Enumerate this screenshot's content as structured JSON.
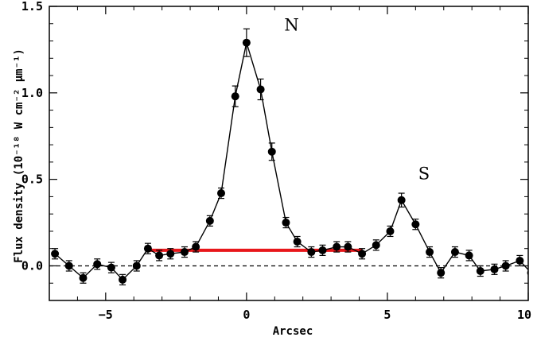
{
  "chart_data": {
    "type": "scatter",
    "title": "",
    "xlabel": "Arcsec",
    "ylabel": "Flux density (10⁻¹⁸ W cm⁻² μm⁻¹)",
    "xlim": [
      -7,
      10
    ],
    "ylim": [
      -0.2,
      1.5
    ],
    "xticks": [
      -5,
      0,
      5,
      10
    ],
    "xtick_labels": [
      "−5",
      "0",
      "5",
      "10"
    ],
    "yticks": [
      0.0,
      0.5,
      1.0,
      1.5
    ],
    "ytick_labels": [
      "0.0",
      "0.5",
      "1.0",
      "1.5"
    ],
    "grid": false,
    "legend": "none",
    "series": [
      {
        "x": [
          -6.8,
          -6.3,
          -5.8,
          -5.3,
          -4.8,
          -4.4,
          -3.9,
          -3.5,
          -3.1,
          -2.7,
          -2.2,
          -1.8,
          -1.3,
          -0.9,
          -0.4,
          0.0,
          0.5,
          0.9,
          1.4,
          1.8,
          2.3,
          2.7,
          3.2,
          3.6,
          4.1,
          4.6,
          5.1,
          5.5,
          6.0,
          6.5,
          6.9,
          7.4,
          7.9,
          8.3,
          8.8,
          9.2,
          9.7,
          10.1
        ],
        "y": [
          0.07,
          0.0,
          -0.07,
          0.01,
          -0.01,
          -0.08,
          0.0,
          0.1,
          0.06,
          0.07,
          0.08,
          0.11,
          0.26,
          0.42,
          0.98,
          1.29,
          1.02,
          0.66,
          0.25,
          0.14,
          0.08,
          0.09,
          0.11,
          0.11,
          0.07,
          0.12,
          0.2,
          0.38,
          0.24,
          0.08,
          -0.04,
          0.08,
          0.06,
          -0.03,
          -0.02,
          0.0,
          0.03,
          -0.04
        ],
        "yerr": [
          0.03,
          0.03,
          0.03,
          0.03,
          0.03,
          0.03,
          0.03,
          0.03,
          0.03,
          0.03,
          0.03,
          0.03,
          0.03,
          0.03,
          0.06,
          0.08,
          0.06,
          0.05,
          0.03,
          0.03,
          0.03,
          0.03,
          0.03,
          0.03,
          0.03,
          0.03,
          0.03,
          0.04,
          0.03,
          0.03,
          0.03,
          0.03,
          0.03,
          0.03,
          0.03,
          0.03,
          0.03,
          0.03
        ]
      }
    ],
    "reference_line": {
      "y": 0.0,
      "style": "dashed",
      "color": "#000000"
    },
    "highlight_segment": {
      "x": [
        -3.5,
        4.1
      ],
      "y": 0.09,
      "color": "#e8171b"
    },
    "annotations": [
      {
        "text": "N",
        "x": 1.6,
        "y": 1.36
      },
      {
        "text": "S",
        "x": 6.3,
        "y": 0.5
      }
    ]
  }
}
